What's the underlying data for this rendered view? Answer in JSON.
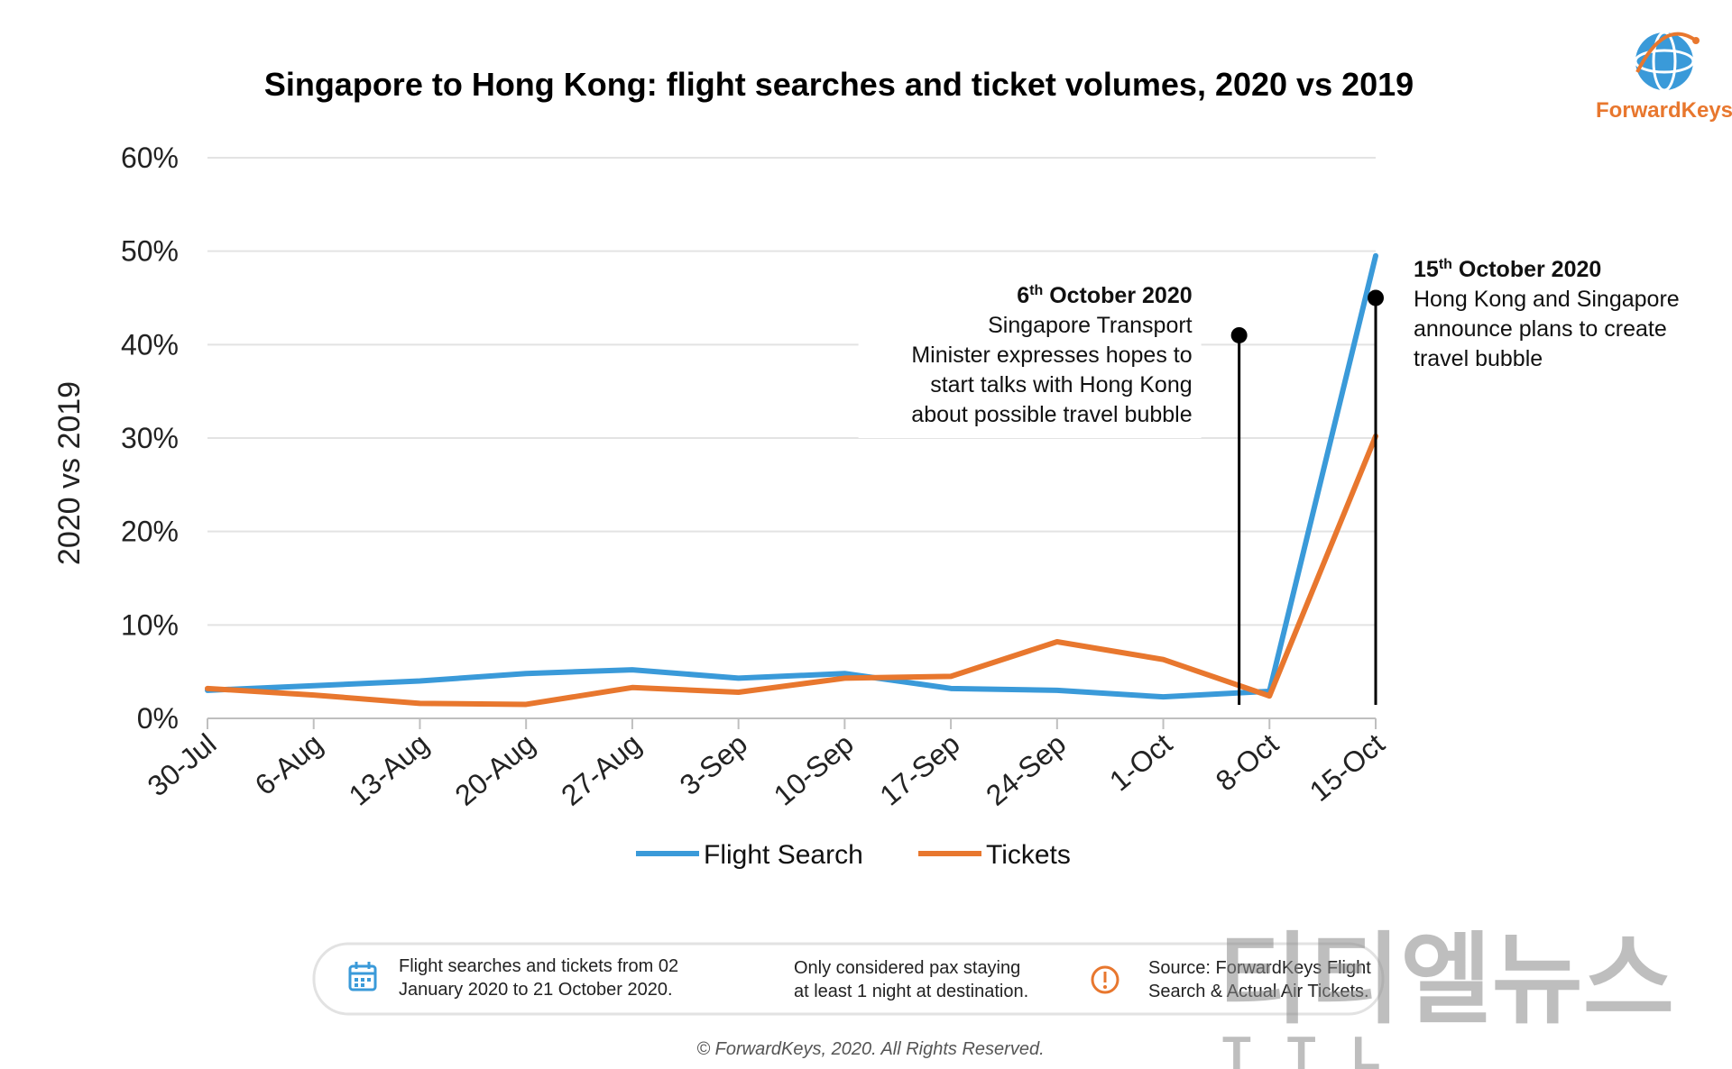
{
  "logo": {
    "text": "ForwardKeys"
  },
  "chart_data": {
    "type": "line",
    "title": "Singapore to Hong Kong: flight searches and ticket volumes, 2020 vs 2019",
    "ylabel": "2020 vs 2019",
    "xlabel": "",
    "categories": [
      "30-Jul",
      "6-Aug",
      "13-Aug",
      "20-Aug",
      "27-Aug",
      "3-Sep",
      "10-Sep",
      "17-Sep",
      "24-Sep",
      "1-Oct",
      "8-Oct",
      "15-Oct"
    ],
    "ylim": [
      0,
      60
    ],
    "yticks": [
      "0%",
      "10%",
      "20%",
      "30%",
      "40%",
      "50%",
      "60%"
    ],
    "grid": true,
    "legend_position": "bottom",
    "series": [
      {
        "name": "Flight Search",
        "color": "#3a9ad9",
        "values": [
          3.0,
          3.5,
          4.0,
          4.8,
          5.2,
          4.3,
          4.8,
          3.2,
          3.0,
          2.3,
          2.9,
          49.5
        ]
      },
      {
        "name": "Tickets",
        "color": "#e8772e",
        "values": [
          3.2,
          2.5,
          1.6,
          1.5,
          3.3,
          2.8,
          4.3,
          4.5,
          8.2,
          6.3,
          2.4,
          30.2
        ]
      }
    ],
    "annotations": [
      {
        "title": "6",
        "sup": "th",
        "title_rest": " October 2020",
        "lines": [
          "Singapore Transport",
          "Minister expresses hopes to",
          "start talks with Hong Kong",
          "about possible travel bubble"
        ],
        "x_value": "8-Oct",
        "offset_days": -2,
        "y_value": 41
      },
      {
        "title": "15",
        "sup": "th",
        "title_rest": " October 2020",
        "lines": [
          "Hong Kong and Singapore",
          "announce plans to create",
          "travel bubble"
        ],
        "x_value": "15-Oct",
        "offset_days": 0,
        "y_value": 45
      }
    ]
  },
  "footer": {
    "items": [
      {
        "icon": "calendar-icon",
        "lines": [
          "Flight searches and tickets from 02",
          "January 2020 to 21 October 2020."
        ]
      },
      {
        "icon": "moon-icon",
        "lines": [
          "Only considered pax staying",
          "at least 1 night at destination."
        ]
      },
      {
        "icon": "warning-icon",
        "lines": [
          "Source: ForwardKeys Flight",
          "Search & Actual Air Tickets."
        ]
      }
    ],
    "copyright": "© ForwardKeys, 2020. All Rights Reserved."
  },
  "watermark": {
    "main": "티티엘뉴스",
    "sub": "TTL"
  }
}
